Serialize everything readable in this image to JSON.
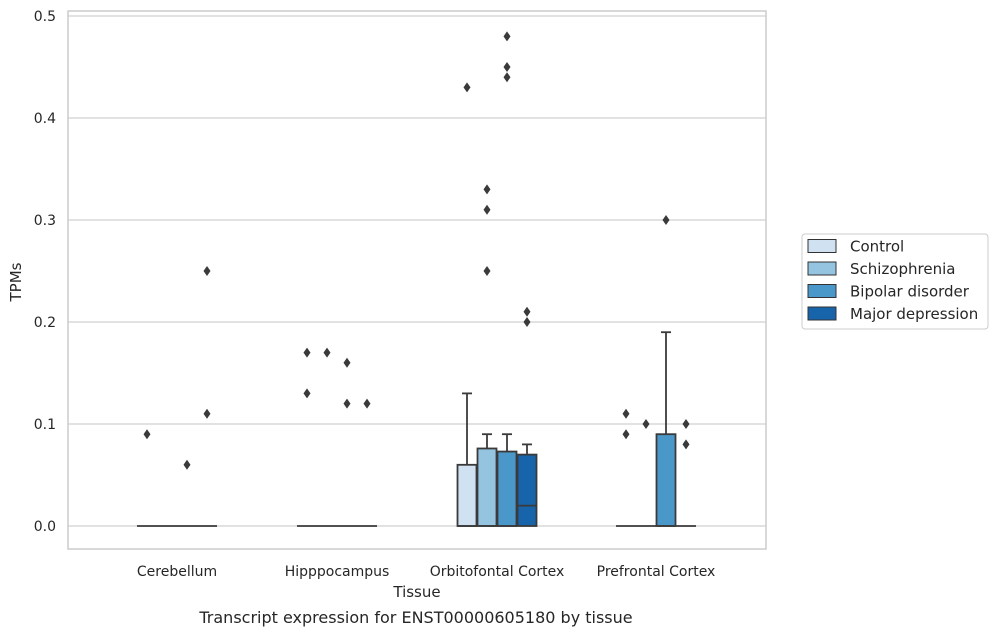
{
  "chart_data": {
    "type": "box",
    "caption": "Transcript expression for ENST00000605180 by tissue",
    "xlabel": "Tissue",
    "ylabel": "TPMs",
    "ylim": [
      -0.023,
      0.505
    ],
    "yticks": [
      0.0,
      0.1,
      0.2,
      0.3,
      0.4,
      0.5
    ],
    "ytick_labels": [
      "0.0",
      "0.1",
      "0.2",
      "0.3",
      "0.4",
      "0.5"
    ],
    "grid": "horizontal",
    "legend_position": "right",
    "categories": [
      "Cerebellum",
      "Hipppocampus",
      "Orbitofontal Cortex",
      "Prefrontal Cortex"
    ],
    "series": [
      {
        "name": "Control",
        "color": "#d0e1f2",
        "boxes": [
          {
            "q1": 0,
            "median": 0,
            "q3": 0,
            "whislo": 0,
            "whishi": 0,
            "fliers": [
              0.09
            ]
          },
          {
            "q1": 0,
            "median": 0,
            "q3": 0,
            "whislo": 0,
            "whishi": 0,
            "fliers": [
              0.17,
              0.13
            ]
          },
          {
            "q1": 0,
            "median": 0,
            "q3": 0.06,
            "whislo": 0,
            "whishi": 0.13,
            "fliers": [
              0.43
            ]
          },
          {
            "q1": 0,
            "median": 0,
            "q3": 0,
            "whislo": 0,
            "whishi": 0,
            "fliers": [
              0.11,
              0.09
            ]
          }
        ]
      },
      {
        "name": "Schizophrenia",
        "color": "#94c4df",
        "boxes": [
          {
            "q1": 0,
            "median": 0,
            "q3": 0,
            "whislo": 0,
            "whishi": 0,
            "fliers": []
          },
          {
            "q1": 0,
            "median": 0,
            "q3": 0,
            "whislo": 0,
            "whishi": 0,
            "fliers": [
              0.17
            ]
          },
          {
            "q1": 0,
            "median": 0,
            "q3": 0.076,
            "whislo": 0,
            "whishi": 0.09,
            "fliers": [
              0.33,
              0.31,
              0.25
            ]
          },
          {
            "q1": 0,
            "median": 0,
            "q3": 0,
            "whislo": 0,
            "whishi": 0,
            "fliers": [
              0.1
            ]
          }
        ]
      },
      {
        "name": "Bipolar disorder",
        "color": "#4a98c9",
        "boxes": [
          {
            "q1": 0,
            "median": 0,
            "q3": 0,
            "whislo": 0,
            "whishi": 0,
            "fliers": [
              0.06
            ]
          },
          {
            "q1": 0,
            "median": 0,
            "q3": 0,
            "whislo": 0,
            "whishi": 0,
            "fliers": [
              0.16,
              0.12
            ]
          },
          {
            "q1": 0,
            "median": 0,
            "q3": 0.073,
            "whislo": 0,
            "whishi": 0.09,
            "fliers": [
              0.48,
              0.45,
              0.44
            ]
          },
          {
            "q1": 0,
            "median": 0,
            "q3": 0.09,
            "whislo": 0,
            "whishi": 0.19,
            "fliers": [
              0.3
            ]
          }
        ]
      },
      {
        "name": "Major depression",
        "color": "#1764ab",
        "boxes": [
          {
            "q1": 0,
            "median": 0,
            "q3": 0,
            "whislo": 0,
            "whishi": 0,
            "fliers": [
              0.25,
              0.11
            ]
          },
          {
            "q1": 0,
            "median": 0,
            "q3": 0,
            "whislo": 0,
            "whishi": 0,
            "fliers": [
              0.12
            ]
          },
          {
            "q1": 0,
            "median": 0.02,
            "q3": 0.07,
            "whislo": 0,
            "whishi": 0.08,
            "fliers": [
              0.21,
              0.2
            ]
          },
          {
            "q1": 0,
            "median": 0,
            "q3": 0,
            "whislo": 0,
            "whishi": 0,
            "fliers": [
              0.1,
              0.08
            ]
          }
        ]
      }
    ]
  }
}
